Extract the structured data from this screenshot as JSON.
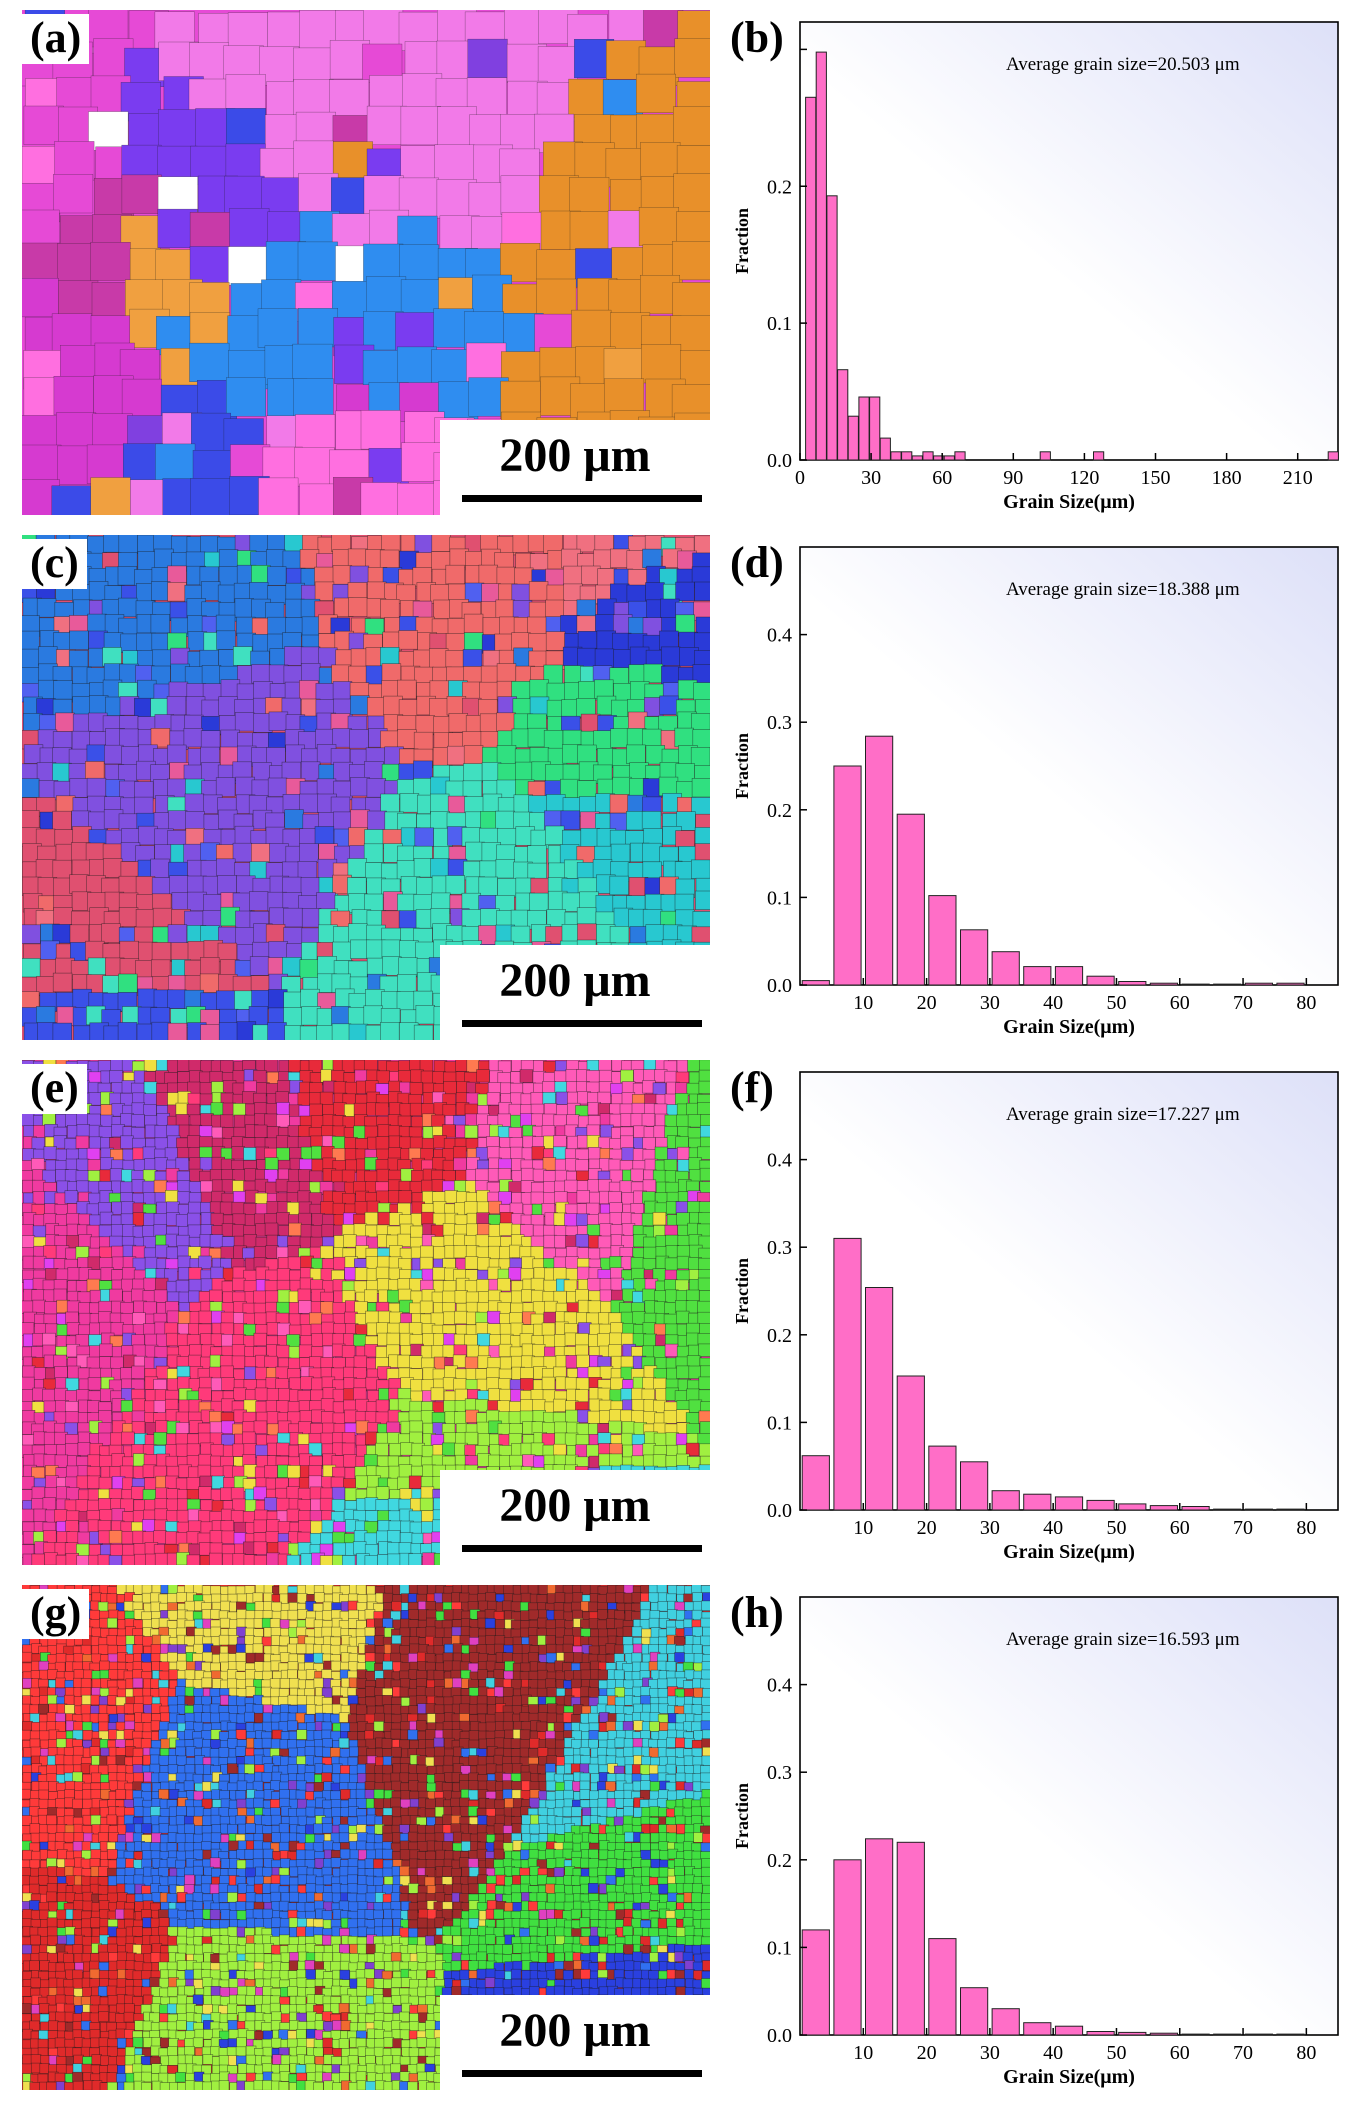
{
  "panels": [
    {
      "map_label": "(a)",
      "chart_label": "(b)",
      "scale": "200 μm",
      "palette": [
        "#e64ad6",
        "#ff6fe0",
        "#f27ae8",
        "#d63ad0",
        "#7a3cf0",
        "#3b4be8",
        "#2f8df0",
        "#e8902a",
        "#f0a040",
        "#c83aa8",
        "#ffffff",
        "#8040e0"
      ]
    },
    {
      "map_label": "(c)",
      "chart_label": "(d)",
      "scale": "200 μm",
      "palette": [
        "#e05070",
        "#f06a6a",
        "#2a3ad8",
        "#3a50e8",
        "#28c8d0",
        "#30e080",
        "#8050e0",
        "#2a7ae0",
        "#f07080",
        "#40e0c0",
        "#5060f0",
        "#e85a9a"
      ]
    },
    {
      "map_label": "(e)",
      "chart_label": "(f)",
      "scale": "200 μm",
      "palette": [
        "#f03aa0",
        "#ff5ab8",
        "#e82a3a",
        "#50e040",
        "#a0f040",
        "#40d8e0",
        "#8a50e8",
        "#ff3a7a",
        "#f0e040",
        "#d02a6a",
        "#ff7a50",
        "#e040f0"
      ]
    },
    {
      "map_label": "(g)",
      "chart_label": "(h)",
      "scale": "200 μm",
      "palette": [
        "#e02a2a",
        "#ff3a3a",
        "#2a40e0",
        "#40e040",
        "#a0f040",
        "#3070f0",
        "#e040c0",
        "#a02a2a",
        "#f0e050",
        "#40d0e0",
        "#f06a30",
        "#8040d0"
      ]
    }
  ],
  "chart_data": [
    {
      "type": "bar",
      "title": "Average grain size=20.503 μm",
      "xlabel": "Grain Size(μm)",
      "ylabel": "Fraction",
      "xlim": [
        0,
        227
      ],
      "ylim": [
        0,
        0.32
      ],
      "xticks": [
        0,
        30,
        60,
        90,
        120,
        150,
        180,
        210
      ],
      "yticks": [
        0.0,
        0.1,
        0.2,
        0.3
      ],
      "bar_width": 4.3,
      "x": [
        4.5,
        9,
        13.5,
        18,
        22.5,
        27,
        31.5,
        36,
        40.5,
        45,
        49.5,
        54,
        58.5,
        63,
        67.5,
        103.5,
        126,
        225
      ],
      "values": [
        0.265,
        0.298,
        0.193,
        0.066,
        0.032,
        0.046,
        0.046,
        0.016,
        0.006,
        0.006,
        0.003,
        0.006,
        0.003,
        0.003,
        0.006,
        0.006,
        0.006,
        0.006
      ]
    },
    {
      "type": "bar",
      "title": "Average grain size=18.388 μm",
      "xlabel": "Grain Size(μm)",
      "ylabel": "Fraction",
      "xlim": [
        0,
        85
      ],
      "ylim": [
        0,
        0.5
      ],
      "xticks": [
        10,
        20,
        30,
        40,
        50,
        60,
        70,
        80
      ],
      "yticks": [
        0.0,
        0.1,
        0.2,
        0.3,
        0.4
      ],
      "bar_width": 4.3,
      "x": [
        2.5,
        7.5,
        12.5,
        17.5,
        22.5,
        27.5,
        32.5,
        37.5,
        42.5,
        47.5,
        52.5,
        57.5,
        62.5,
        67.5,
        72.5,
        77.5
      ],
      "values": [
        0.005,
        0.25,
        0.284,
        0.195,
        0.102,
        0.063,
        0.038,
        0.021,
        0.021,
        0.01,
        0.004,
        0.002,
        0.001,
        0.001,
        0.002,
        0.002
      ]
    },
    {
      "type": "bar",
      "title": "Average grain size=17.227 μm",
      "xlabel": "Grain Size(μm)",
      "ylabel": "Fraction",
      "xlim": [
        0,
        85
      ],
      "ylim": [
        0,
        0.5
      ],
      "xticks": [
        10,
        20,
        30,
        40,
        50,
        60,
        70,
        80
      ],
      "yticks": [
        0.0,
        0.1,
        0.2,
        0.3,
        0.4
      ],
      "bar_width": 4.3,
      "x": [
        2.5,
        7.5,
        12.5,
        17.5,
        22.5,
        27.5,
        32.5,
        37.5,
        42.5,
        47.5,
        52.5,
        57.5,
        62.5,
        67.5,
        72.5,
        77.5
      ],
      "values": [
        0.062,
        0.31,
        0.254,
        0.153,
        0.073,
        0.055,
        0.022,
        0.018,
        0.015,
        0.011,
        0.007,
        0.005,
        0.004,
        0.001,
        0.001,
        0.001
      ]
    },
    {
      "type": "bar",
      "title": "Average grain size=16.593 μm",
      "xlabel": "Grain Size(μm)",
      "ylabel": "Fraction",
      "xlim": [
        0,
        85
      ],
      "ylim": [
        0,
        0.5
      ],
      "xticks": [
        10,
        20,
        30,
        40,
        50,
        60,
        70,
        80
      ],
      "yticks": [
        0.0,
        0.1,
        0.2,
        0.3,
        0.4
      ],
      "bar_width": 4.3,
      "x": [
        2.5,
        7.5,
        12.5,
        17.5,
        22.5,
        27.5,
        32.5,
        37.5,
        42.5,
        47.5,
        52.5,
        57.5,
        62.5,
        67.5,
        72.5,
        77.5
      ],
      "values": [
        0.12,
        0.2,
        0.224,
        0.22,
        0.11,
        0.054,
        0.03,
        0.014,
        0.01,
        0.004,
        0.003,
        0.002,
        0.001,
        0.001,
        0.001,
        0.001
      ]
    }
  ],
  "colors": {
    "bar_fill": "#ff6ec7",
    "bar_stroke": "#222222",
    "axis": "#000000",
    "bg_tint": "#dde0f8"
  }
}
